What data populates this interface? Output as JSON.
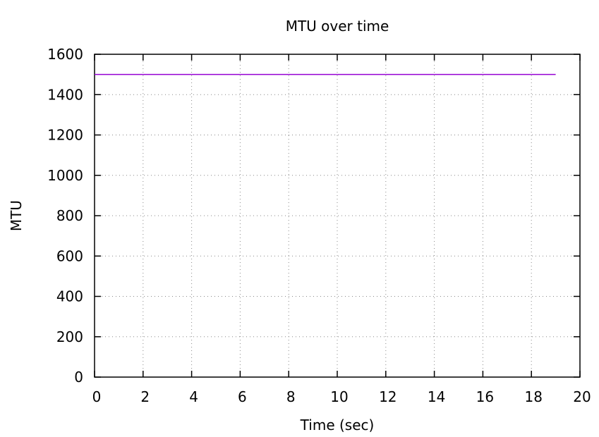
{
  "chart_data": {
    "type": "line",
    "title": "MTU over time",
    "xlabel": "Time (sec)",
    "ylabel": "MTU",
    "xlim": [
      0,
      20
    ],
    "ylim": [
      0,
      1600
    ],
    "xticks": [
      0,
      2,
      4,
      6,
      8,
      10,
      12,
      14,
      16,
      18,
      20
    ],
    "yticks": [
      0,
      200,
      400,
      600,
      800,
      1000,
      1200,
      1400,
      1600
    ],
    "grid": true,
    "legend": "none",
    "series": [
      {
        "name": "MTU",
        "color": "#9400d3",
        "x": [
          0,
          19
        ],
        "y": [
          1500,
          1500
        ]
      }
    ]
  }
}
